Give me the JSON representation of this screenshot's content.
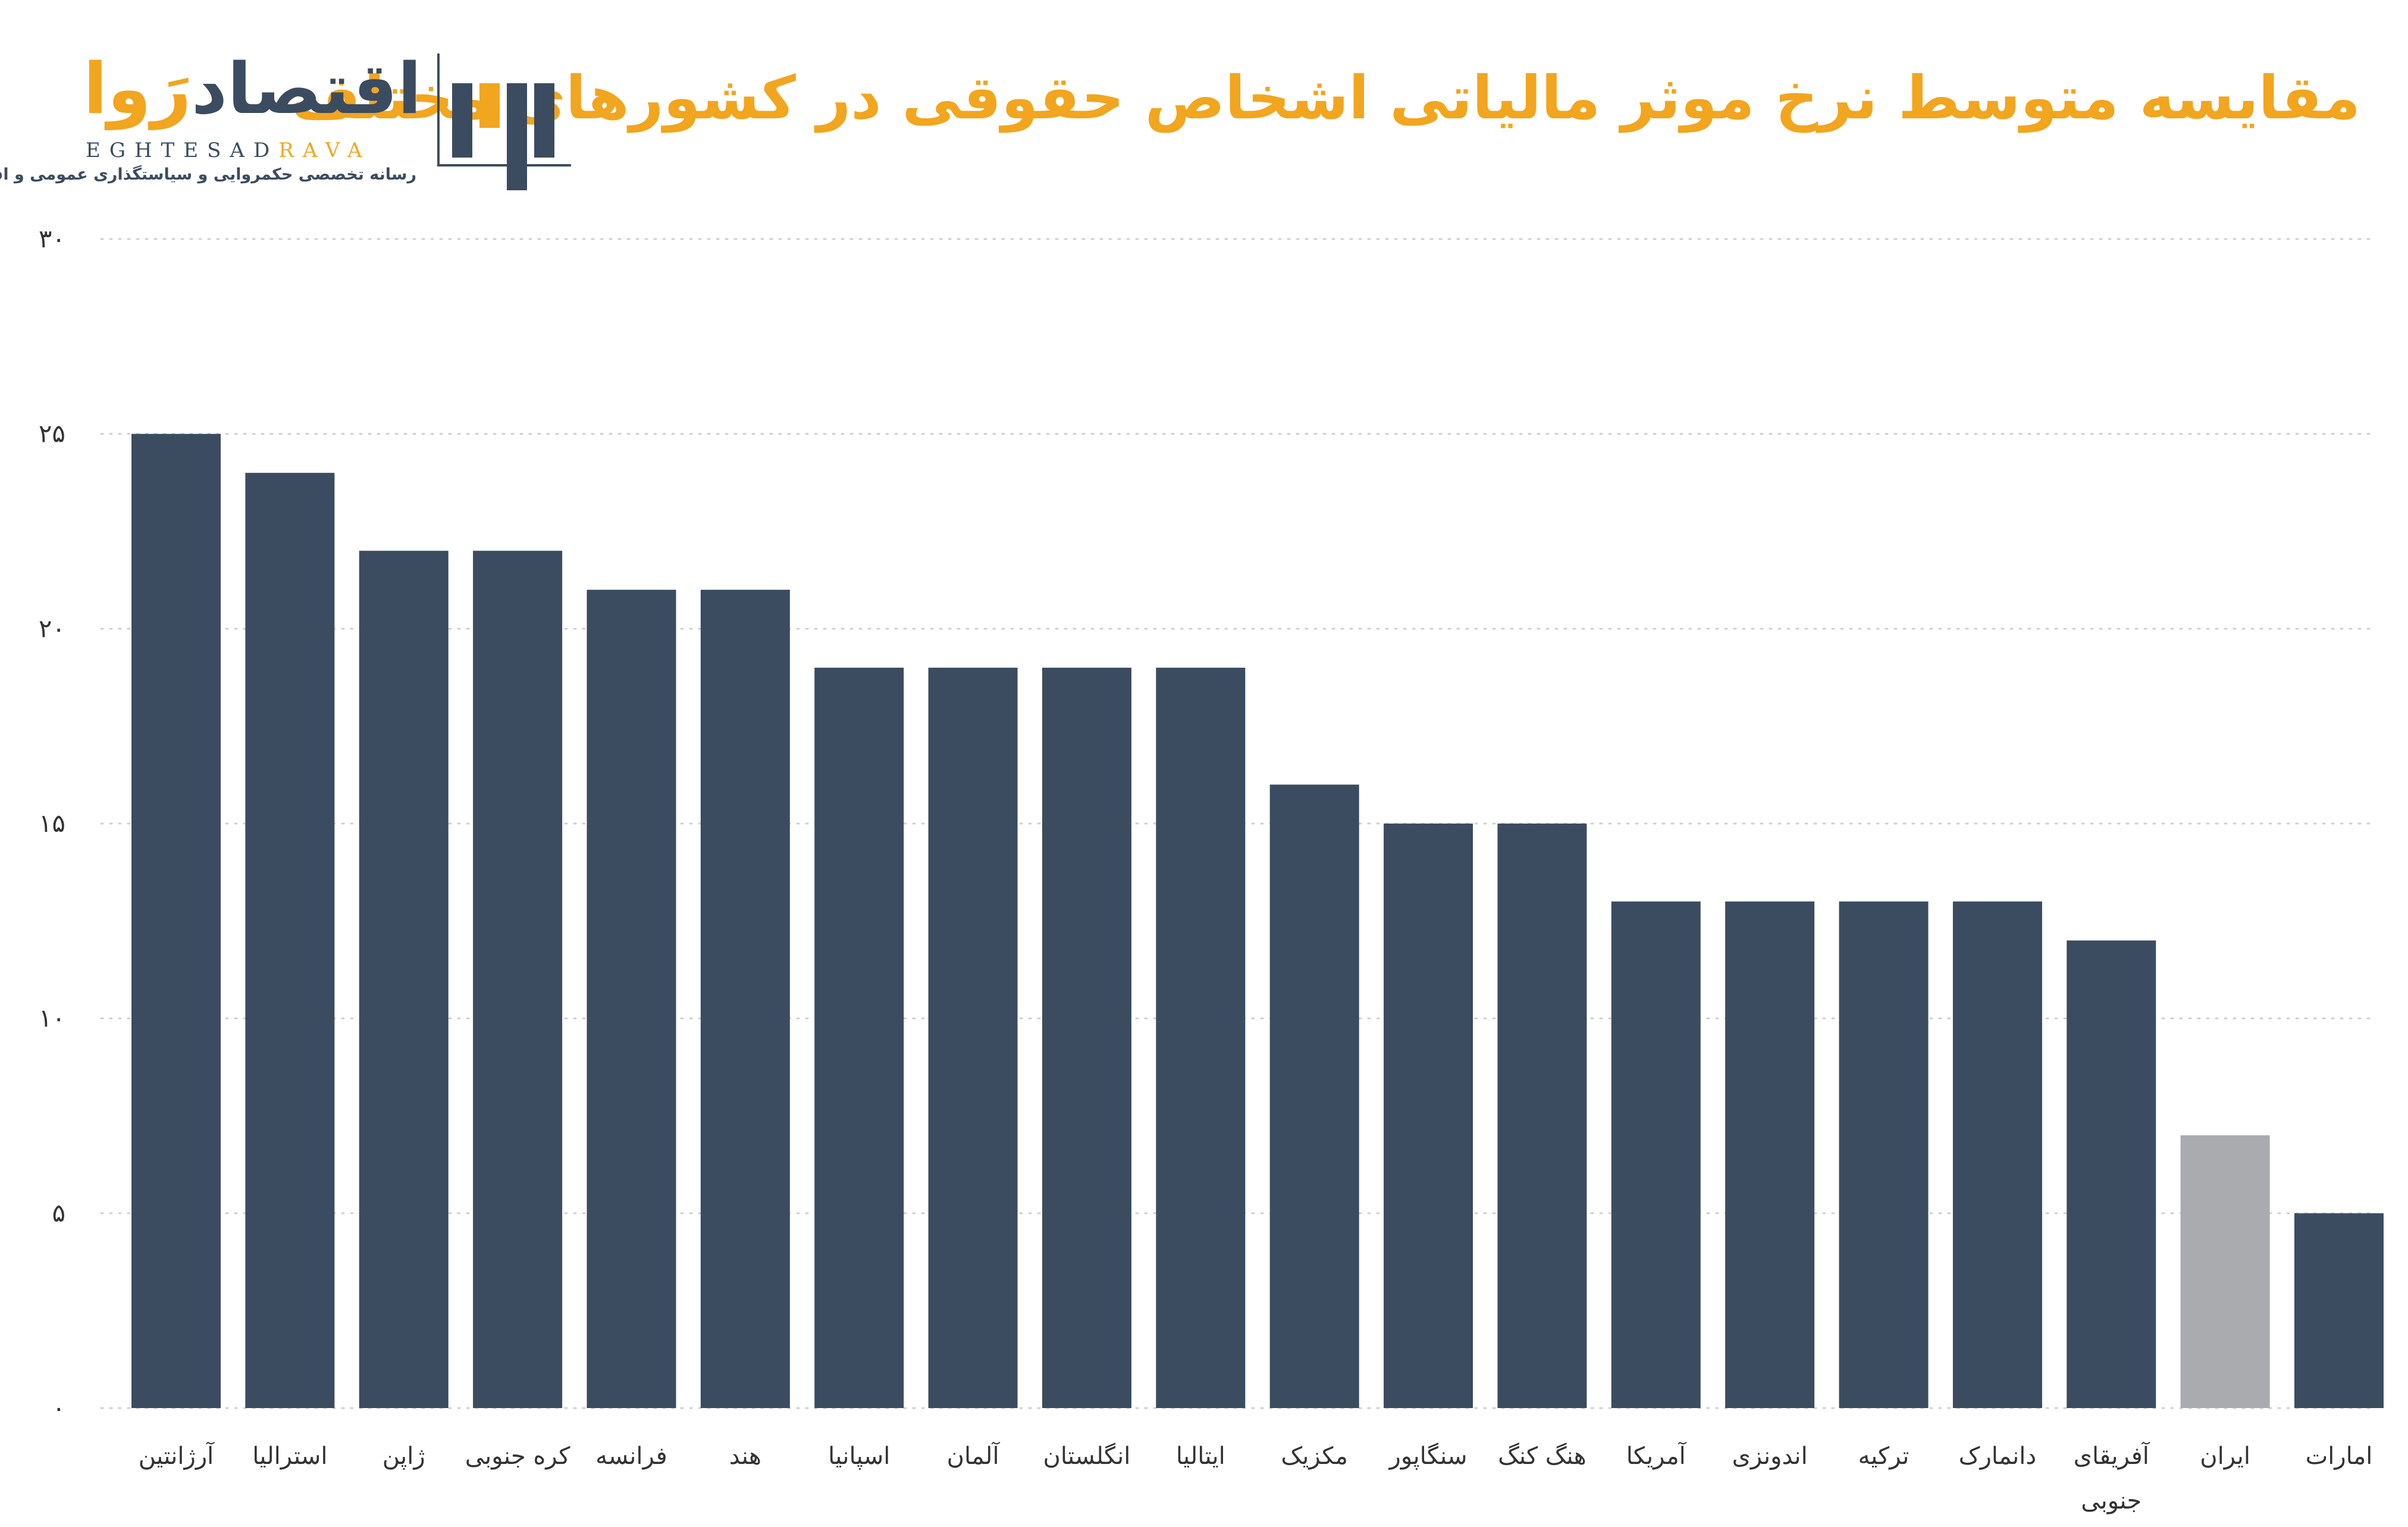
{
  "header": {
    "title": "مقایسه متوسط نرخ موثر مالیاتی اشخاص حقوقی در کشورهای مختلف"
  },
  "logo": {
    "name_main": "اقتصاد",
    "name_accent": "رَوا",
    "latin_main": "EGHTESAD",
    "latin_accent": "RAVA",
    "tagline": "رسانه تخصصی حکمروایی و سیاستگذاری عمومی و اقتصادی",
    "icon": "eghtesadrava-logo-mark"
  },
  "colors": {
    "bar": "#3b4c60",
    "highlight_bar": "#a9abae",
    "title": "#f2a51e",
    "grid": "#d0d0d0",
    "text": "#333333"
  },
  "chart_data": {
    "type": "bar",
    "title": "مقایسه متوسط نرخ موثر مالیاتی اشخاص حقوقی در کشورهای مختلف",
    "xlabel": "",
    "ylabel": "",
    "ylim": [
      0,
      30
    ],
    "yticks": [
      0,
      5,
      10,
      15,
      20,
      25,
      30
    ],
    "ytick_labels": [
      "۰",
      "۵",
      "۱۰",
      "۱۵",
      "۲۰",
      "۲۵",
      "۳۰"
    ],
    "grid": true,
    "legend": "none",
    "highlight_category": "ایران",
    "categories": [
      "آرژانتین",
      "استرالیا",
      "ژاپن",
      "کره جنوبی",
      "فرانسه",
      "هند",
      "اسپانیا",
      "آلمان",
      "انگلستان",
      "ایتالیا",
      "مکزیک",
      "سنگاپور",
      "هنگ کنگ",
      "آمریکا",
      "اندونزی",
      "ترکیه",
      "دانمارک",
      "آفریقای جنوبی",
      "ایران",
      "امارات"
    ],
    "values": [
      25,
      24,
      22,
      22,
      21,
      21,
      19,
      19,
      19,
      19,
      16,
      15,
      15,
      13,
      13,
      13,
      13,
      12,
      7,
      5
    ]
  }
}
